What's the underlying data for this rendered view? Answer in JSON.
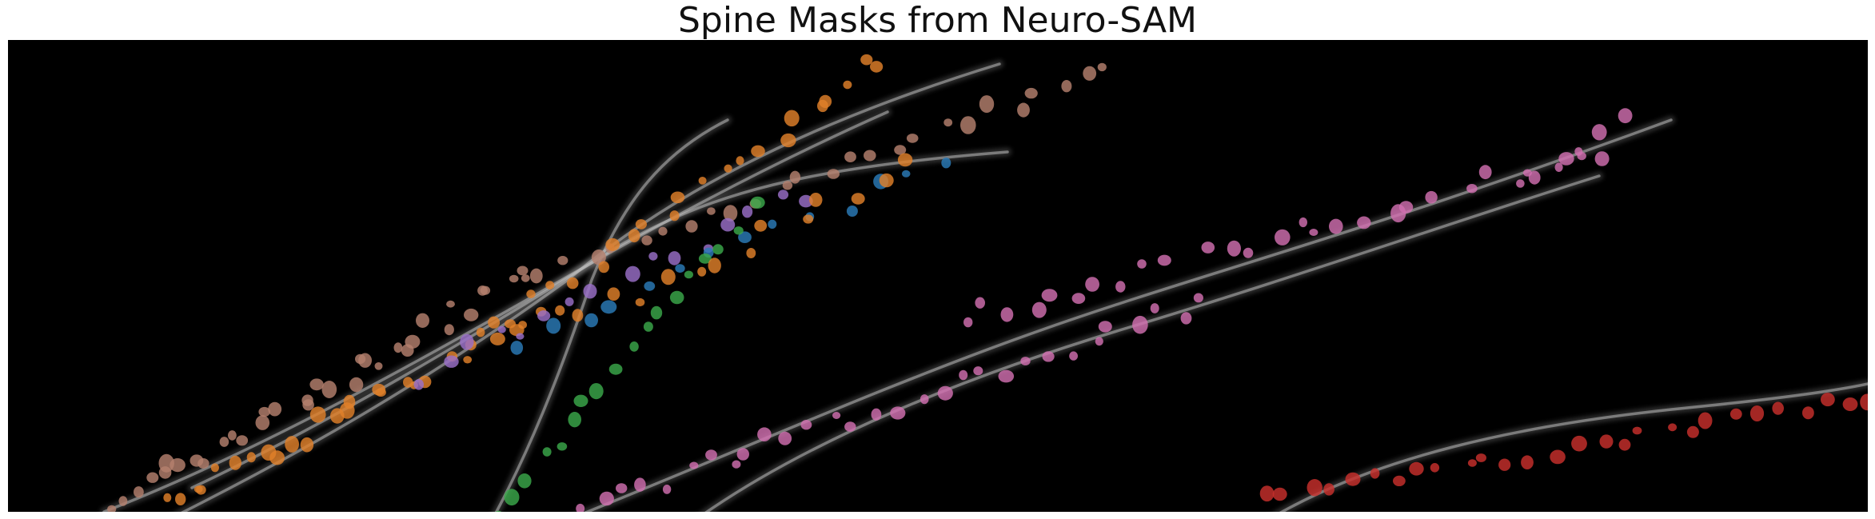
{
  "title": "Spine Masks from Neuro-SAM",
  "colors": {
    "background": "#000000",
    "dendrite": "#bdbdbd",
    "mask_orange": "#e0802a",
    "mask_brown": "#b5806e",
    "mask_pink": "#d16fb0",
    "mask_green": "#3aa84a",
    "mask_blue": "#2b7bb8",
    "mask_purple": "#9a6fc8",
    "mask_red": "#c8302c"
  },
  "icons": {
    "image": "fluorescence-microscopy-image"
  }
}
